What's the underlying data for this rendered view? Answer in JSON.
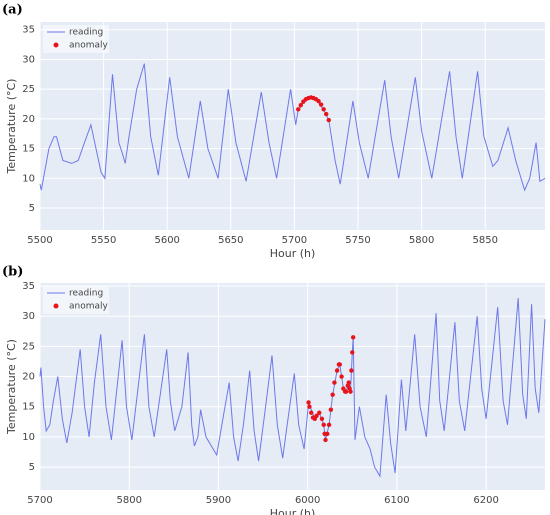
{
  "chart_data": [
    {
      "type": "line",
      "label": "(a)",
      "xlabel": "Hour (h)",
      "ylabel": "Temperature (°C)",
      "xlim": [
        5500,
        5897
      ],
      "ylim": [
        1.3,
        36.3
      ],
      "xticks": [
        5500,
        5550,
        5600,
        5650,
        5700,
        5750,
        5800,
        5850
      ],
      "yticks": [
        5,
        10,
        15,
        20,
        25,
        30,
        35
      ],
      "grid": true,
      "legend": "top-left",
      "series": [
        {
          "name": "reading",
          "type": "line",
          "color": "#6e78ea",
          "x": [
            5500,
            5501,
            5507,
            5511,
            5513,
            5518,
            5525,
            5530,
            5535,
            5540,
            5548,
            5551,
            5557,
            5562,
            5565,
            5567,
            5570,
            5576,
            5582,
            5587,
            5593,
            5602,
            5608,
            5617,
            5626,
            5632,
            5640,
            5648,
            5654,
            5662,
            5674,
            5680,
            5686,
            5697,
            5701,
            5703,
            5708,
            5713,
            5718,
            5723,
            5727,
            5732,
            5736,
            5746,
            5751,
            5758,
            5771,
            5776,
            5782,
            5795,
            5800,
            5808,
            5822,
            5827,
            5832,
            5844,
            5849,
            5856,
            5860,
            5868,
            5874,
            5881,
            5885,
            5890,
            5893,
            5897
          ],
          "values": [
            9,
            8,
            15,
            17,
            17,
            13,
            12.5,
            13,
            16,
            19,
            11,
            10,
            27.5,
            16,
            14,
            12.5,
            17,
            25,
            29.3,
            17,
            10.5,
            27,
            17,
            10,
            23,
            15,
            10,
            25,
            16,
            9.5,
            24.5,
            16,
            10,
            25,
            19,
            21.5,
            23,
            23.5,
            23,
            21.5,
            19.8,
            13,
            9,
            23,
            16,
            10,
            26.5,
            17,
            10,
            27,
            18,
            10,
            28,
            17,
            10,
            28,
            17,
            12,
            13,
            18.5,
            13,
            8,
            10,
            16,
            9.5,
            10
          ]
        },
        {
          "name": "anomaly",
          "type": "scatter",
          "color": "#e8141b",
          "x": [
            5703,
            5705,
            5707,
            5709,
            5711,
            5713,
            5715,
            5717,
            5719,
            5721,
            5723,
            5725,
            5727
          ],
          "values": [
            21.6,
            22.3,
            22.9,
            23.3,
            23.5,
            23.6,
            23.5,
            23.3,
            23,
            22.4,
            21.6,
            20.8,
            19.8
          ]
        }
      ]
    },
    {
      "type": "line",
      "label": "(b)",
      "xlabel": "Hour (h)",
      "ylabel": "Temperature (°C)",
      "xlim": [
        5700,
        6266
      ],
      "ylim": [
        1.2,
        35.5
      ],
      "xticks": [
        5700,
        5800,
        5900,
        6000,
        6100,
        6200
      ],
      "yticks": [
        5,
        10,
        15,
        20,
        25,
        30,
        35
      ],
      "grid": true,
      "legend": "top-left",
      "series": [
        {
          "name": "reading",
          "type": "line",
          "color": "#6e78ea",
          "x": [
            5700,
            5701,
            5704,
            5707,
            5711,
            5715,
            5720,
            5725,
            5730,
            5736,
            5745,
            5750,
            5755,
            5761,
            5768,
            5774,
            5780,
            5792,
            5797,
            5803,
            5817,
            5822,
            5828,
            5842,
            5846,
            5851,
            5859,
            5866,
            5870,
            5873,
            5877,
            5880,
            5886,
            5898,
            5905,
            5912,
            5917,
            5922,
            5928,
            5935,
            5940,
            5945,
            5952,
            5960,
            5966,
            5972,
            5978,
            5985,
            5990,
            5996,
            6001,
            6008,
            6013,
            6018,
            6020,
            6024,
            6028,
            6033,
            6036,
            6040,
            6043,
            6046,
            6048,
            6050,
            6051,
            6053,
            6058,
            6064,
            6070,
            6075,
            6081,
            6088,
            6093,
            6098,
            6105,
            6110,
            6120,
            6126,
            6133,
            6144,
            6148,
            6153,
            6165,
            6170,
            6176,
            6190,
            6195,
            6200,
            6213,
            6219,
            6224,
            6236,
            6241,
            6245,
            6251,
            6255,
            6259,
            6266
          ],
          "values": [
            20,
            21.5,
            15,
            11,
            12,
            16,
            20,
            13,
            9,
            14,
            24.5,
            15,
            10,
            19,
            27,
            15,
            9.5,
            26,
            15,
            9.5,
            27,
            15,
            10,
            24.5,
            16,
            11,
            15,
            24,
            12,
            8.5,
            10,
            14.5,
            10,
            7,
            13,
            19,
            10,
            6,
            12,
            21,
            11,
            6,
            14,
            23.5,
            12,
            6.5,
            13,
            20.5,
            12,
            8,
            15.7,
            13,
            14,
            12,
            9.5,
            12,
            17,
            21,
            22,
            18,
            17.5,
            19,
            17.5,
            24,
            26.5,
            9.5,
            15,
            10,
            8,
            5,
            3.5,
            17,
            9,
            4,
            19.5,
            11,
            27,
            15,
            10,
            30.5,
            16,
            11,
            29,
            16,
            11,
            30,
            18,
            13,
            31.5,
            16,
            12,
            33,
            17,
            13,
            32,
            18,
            14,
            29.5
          ]
        },
        {
          "name": "anomaly",
          "type": "scatter",
          "color": "#e8141b",
          "x": [
            6001,
            6002,
            6004,
            6006,
            6008,
            6010,
            6013,
            6016,
            6018,
            6019,
            6020,
            6022,
            6024,
            6026,
            6028,
            6030,
            6033,
            6035,
            6036,
            6038,
            6040,
            6042,
            6043,
            6045,
            6046,
            6047,
            6048,
            6049,
            6050,
            6051
          ],
          "values": [
            15.7,
            15,
            14,
            13.2,
            13,
            13.5,
            14,
            13,
            12,
            10.5,
            9.5,
            10.5,
            12,
            14.5,
            17,
            19,
            21,
            22,
            22,
            20,
            18,
            17.5,
            17.5,
            18.5,
            19,
            18,
            17.5,
            21,
            24,
            26.5
          ]
        }
      ]
    }
  ]
}
